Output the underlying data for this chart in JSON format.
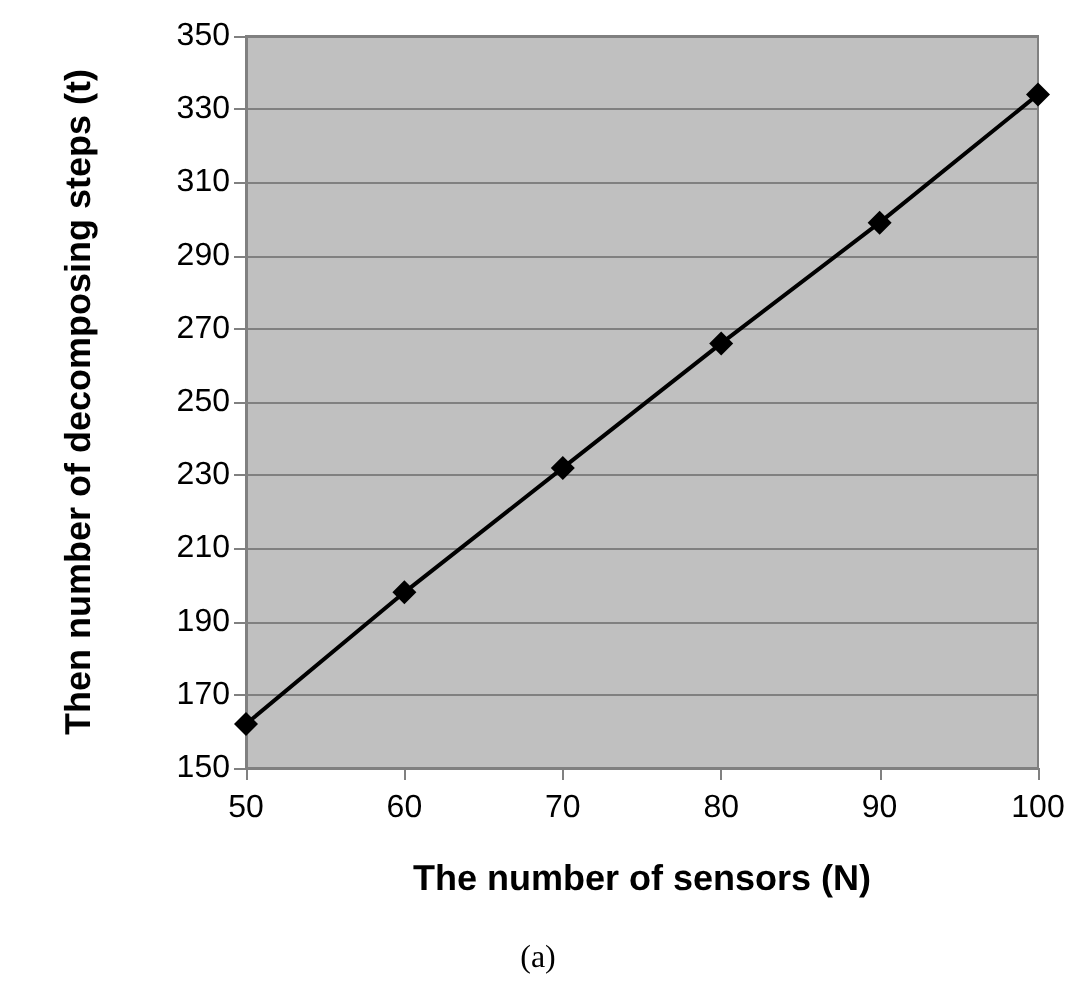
{
  "chart_data": {
    "type": "line",
    "xlabel": "The number of sensors (N)",
    "ylabel": "Then number of decomposing steps (t)",
    "x": [
      50,
      60,
      70,
      80,
      90,
      100
    ],
    "series": [
      {
        "color": "#000000",
        "values": [
          162,
          198,
          232,
          266,
          299,
          334
        ]
      }
    ],
    "xlim": [
      50,
      100
    ],
    "xticks": [
      50,
      60,
      70,
      80,
      90,
      100
    ],
    "ylim": [
      150,
      350
    ],
    "yticks": [
      150,
      170,
      190,
      210,
      230,
      250,
      270,
      290,
      310,
      330,
      350
    ],
    "grid": "y",
    "marker": "diamond",
    "line_style": "solid",
    "annotations": [
      "(a)"
    ]
  }
}
